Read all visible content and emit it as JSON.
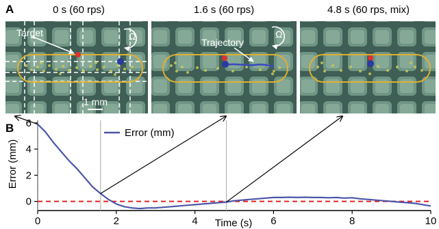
{
  "panels": {
    "a": {
      "letter": "A"
    },
    "b": {
      "letter": "B"
    }
  },
  "photos": [
    {
      "title": "0 s (60 rps)",
      "labels": [
        "Target",
        "1 mm",
        "Ω"
      ]
    },
    {
      "title": "1.6 s (60 rps)",
      "labels": [
        "Trajectory",
        "Ω"
      ]
    },
    {
      "title": "4.8 s (60 rps, mix)",
      "labels": []
    }
  ],
  "colors": {
    "error_line": "#4b55a8",
    "target_line": "#e02020",
    "photo_bg": "#3f5e55",
    "capsule": "#e0b030",
    "marker_red": "#e03030",
    "marker_blue": "#2a3aa0"
  },
  "chart_data": {
    "type": "line",
    "xlabel": "Time (s)",
    "ylabel": "Error (mm)",
    "xlim": [
      0,
      10
    ],
    "ylim": [
      -0.7,
      6.2
    ],
    "xticks": [
      0,
      2,
      4,
      6,
      8,
      10
    ],
    "yticks": [
      0,
      2,
      4,
      6
    ],
    "xtick_labels": [
      "0",
      "2",
      "4",
      "6",
      "8",
      "10"
    ],
    "ytick_labels": [
      "0",
      "2",
      "4",
      "6"
    ],
    "grid": false,
    "legend_position": "top-center",
    "reference_line": {
      "y": 0,
      "style": "dashed"
    },
    "time_markers": [
      0,
      1.6,
      4.8
    ],
    "series": [
      {
        "name": "Error (mm)",
        "x": [
          0,
          0.2,
          0.4,
          0.6,
          0.8,
          1.0,
          1.2,
          1.4,
          1.6,
          1.8,
          2.0,
          2.2,
          2.4,
          2.6,
          2.8,
          3.0,
          3.2,
          3.4,
          3.6,
          3.8,
          4.0,
          4.2,
          4.4,
          4.6,
          4.8,
          5.0,
          5.2,
          5.4,
          5.6,
          5.8,
          6.0,
          6.2,
          6.4,
          6.6,
          6.8,
          7.0,
          7.2,
          7.4,
          7.6,
          7.8,
          8.0,
          8.2,
          8.4,
          8.6,
          8.8,
          9.0,
          9.2,
          9.4,
          9.6,
          9.8,
          10.0
        ],
        "values": [
          5.9,
          5.3,
          4.5,
          3.8,
          3.1,
          2.5,
          1.8,
          1.1,
          0.6,
          0.15,
          -0.2,
          -0.4,
          -0.5,
          -0.55,
          -0.5,
          -0.5,
          -0.45,
          -0.4,
          -0.35,
          -0.3,
          -0.25,
          -0.2,
          -0.15,
          -0.1,
          -0.05,
          0.05,
          0.1,
          0.15,
          0.2,
          0.25,
          0.3,
          0.3,
          0.32,
          0.3,
          0.32,
          0.3,
          0.3,
          0.28,
          0.3,
          0.25,
          0.28,
          0.2,
          0.15,
          0.1,
          0.05,
          0.0,
          -0.05,
          -0.1,
          -0.15,
          -0.25,
          -0.35
        ]
      }
    ]
  }
}
